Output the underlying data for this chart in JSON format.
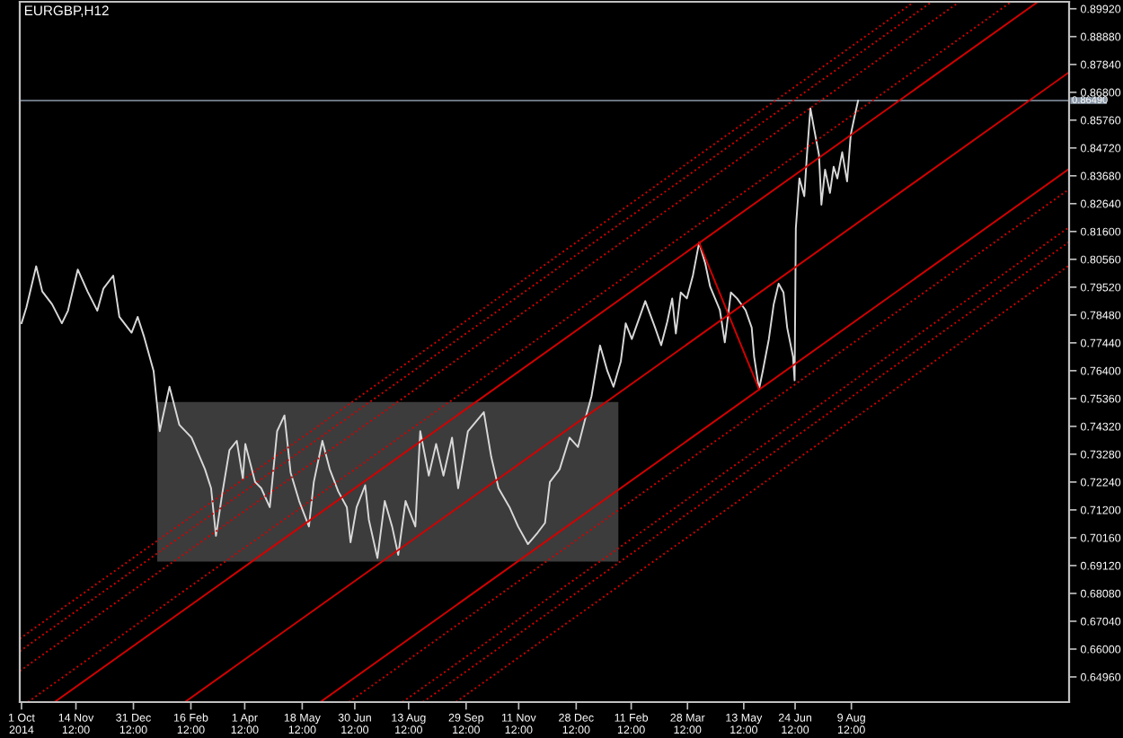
{
  "chart_data": {
    "type": "line",
    "title": "EURGBP,H12",
    "xlim": [
      "2014-09-29T14:00",
      "2017-02-03T12:00"
    ],
    "ylim": [
      0.6402,
      0.9018
    ],
    "xticks": [
      {
        "value": "2014-10-01T00:00",
        "label": "1 Oct 2014"
      },
      {
        "value": "2014-11-14T12:00",
        "label": "14 Nov 12:00"
      },
      {
        "value": "2014-12-31T12:00",
        "label": "31 Dec 12:00"
      },
      {
        "value": "2015-02-16T12:00",
        "label": "16 Feb 12:00"
      },
      {
        "value": "2015-04-01T12:00",
        "label": "1 Apr 12:00"
      },
      {
        "value": "2015-05-18T12:00",
        "label": "18 May 12:00"
      },
      {
        "value": "2015-06-30T12:00",
        "label": "30 Jun 12:00"
      },
      {
        "value": "2015-08-13T12:00",
        "label": "13 Aug 12:00"
      },
      {
        "value": "2015-09-29T12:00",
        "label": "29 Sep 12:00"
      },
      {
        "value": "2015-11-11T12:00",
        "label": "11 Nov 12:00"
      },
      {
        "value": "2015-12-28T12:00",
        "label": "28 Dec 12:00"
      },
      {
        "value": "2016-02-11T12:00",
        "label": "11 Feb 12:00"
      },
      {
        "value": "2016-03-28T12:00",
        "label": "28 Mar 12:00"
      },
      {
        "value": "2016-05-13T12:00",
        "label": "13 May 12:00"
      },
      {
        "value": "2016-06-24T12:00",
        "label": "24 Jun 12:00"
      },
      {
        "value": "2016-08-09T12:00",
        "label": "9 Aug 12:00"
      }
    ],
    "yticks": [
      {
        "value": 0.6496,
        "label": "0.64960"
      },
      {
        "value": 0.66,
        "label": "0.66000"
      },
      {
        "value": 0.6704,
        "label": "0.67040"
      },
      {
        "value": 0.6808,
        "label": "0.68080"
      },
      {
        "value": 0.6912,
        "label": "0.69120"
      },
      {
        "value": 0.7016,
        "label": "0.70160"
      },
      {
        "value": 0.712,
        "label": "0.71200"
      },
      {
        "value": 0.7224,
        "label": "0.72240"
      },
      {
        "value": 0.7328,
        "label": "0.73280"
      },
      {
        "value": 0.7432,
        "label": "0.74320"
      },
      {
        "value": 0.7536,
        "label": "0.75360"
      },
      {
        "value": 0.764,
        "label": "0.76400"
      },
      {
        "value": 0.7744,
        "label": "0.77440"
      },
      {
        "value": 0.7848,
        "label": "0.78480"
      },
      {
        "value": 0.7952,
        "label": "0.79520"
      },
      {
        "value": 0.8056,
        "label": "0.80560"
      },
      {
        "value": 0.816,
        "label": "0.81600"
      },
      {
        "value": 0.8264,
        "label": "0.82640"
      },
      {
        "value": 0.8368,
        "label": "0.83680"
      },
      {
        "value": 0.8472,
        "label": "0.84720"
      },
      {
        "value": 0.8576,
        "label": "0.85760"
      },
      {
        "value": 0.868,
        "label": "0.86800"
      },
      {
        "value": 0.8784,
        "label": "0.87840"
      },
      {
        "value": 0.8888,
        "label": "0.88880"
      },
      {
        "value": 0.8992,
        "label": "0.89920"
      }
    ],
    "series": [
      {
        "color": "#3c3c3c",
        "x": [
          "2015-01-20",
          "2016-02-01"
        ],
        "values": [
          null,
          null
        ],
        "lower": [
          0.6927,
          0.6927
        ],
        "upper": [
          0.7523,
          0.7523
        ]
      },
      {
        "color": "#d8d8d8",
        "line_style": "solid",
        "x": [
          "2014-10-01",
          "2014-10-05",
          "2014-10-13",
          "2014-10-18",
          "2014-10-26",
          "2014-11-03",
          "2014-11-08",
          "2014-11-16",
          "2014-11-24",
          "2014-12-02",
          "2014-12-07",
          "2014-12-15",
          "2014-12-20",
          "2014-12-30",
          "2015-01-04",
          "2015-01-09",
          "2015-01-17",
          "2015-01-22",
          "2015-01-30",
          "2015-02-07",
          "2015-02-17",
          "2015-02-28",
          "2015-03-05",
          "2015-03-09",
          "2015-03-14",
          "2015-03-20",
          "2015-03-26",
          "2015-03-31",
          "2015-04-02",
          "2015-04-10",
          "2015-04-15",
          "2015-04-22",
          "2015-04-28",
          "2015-05-04",
          "2015-05-09",
          "2015-05-16",
          "2015-05-24",
          "2015-05-28",
          "2015-06-04",
          "2015-06-10",
          "2015-06-17",
          "2015-06-24",
          "2015-06-27",
          "2015-07-02",
          "2015-07-09",
          "2015-07-12",
          "2015-07-19",
          "2015-07-25",
          "2015-07-31",
          "2015-08-05",
          "2015-08-11",
          "2015-08-19",
          "2015-08-23",
          "2015-08-30",
          "2015-09-05",
          "2015-09-11",
          "2015-09-18",
          "2015-09-23",
          "2015-10-01",
          "2015-10-14",
          "2015-10-20",
          "2015-10-26",
          "2015-11-04",
          "2015-11-11",
          "2015-11-19",
          "2015-11-27",
          "2015-12-03",
          "2015-12-07",
          "2015-12-15",
          "2015-12-23",
          "2015-12-30",
          "2016-01-05",
          "2016-01-10",
          "2016-01-17",
          "2016-01-23",
          "2016-01-28",
          "2016-02-03",
          "2016-02-07",
          "2016-02-12",
          "2016-02-23",
          "2016-03-02",
          "2016-03-07",
          "2016-03-12",
          "2016-03-16",
          "2016-03-19",
          "2016-03-23",
          "2016-03-28",
          "2016-04-02",
          "2016-04-07",
          "2016-04-12",
          "2016-04-16",
          "2016-04-24",
          "2016-04-28",
          "2016-05-03",
          "2016-05-08",
          "2016-05-15",
          "2016-05-20",
          "2016-05-22",
          "2016-05-26",
          "2016-05-29",
          "2016-06-03",
          "2016-06-07",
          "2016-06-11",
          "2016-06-15",
          "2016-06-18",
          "2016-06-22T19:00",
          "2016-06-24T02:00",
          "2016-06-25T02:00",
          "2016-06-28",
          "2016-07-02",
          "2016-07-04",
          "2016-07-07",
          "2016-07-10",
          "2016-07-14",
          "2016-07-16",
          "2016-07-19",
          "2016-07-23",
          "2016-07-26",
          "2016-07-29",
          "2016-08-02",
          "2016-08-06",
          "2016-08-09",
          "2016-08-12",
          "2016-08-15"
        ],
        "values": [
          0.7817,
          0.7876,
          0.803,
          0.7936,
          0.7888,
          0.7817,
          0.7864,
          0.8018,
          0.7936,
          0.7864,
          0.7947,
          0.7995,
          0.7841,
          0.7782,
          0.7841,
          0.777,
          0.7639,
          0.7414,
          0.758,
          0.7438,
          0.739,
          0.7272,
          0.7201,
          0.7023,
          0.7177,
          0.7343,
          0.7378,
          0.7236,
          0.7366,
          0.7224,
          0.7201,
          0.713,
          0.7414,
          0.7473,
          0.726,
          0.7153,
          0.7058,
          0.7224,
          0.7378,
          0.7272,
          0.7189,
          0.713,
          0.6999,
          0.713,
          0.7212,
          0.7083,
          0.694,
          0.7153,
          0.7058,
          0.6952,
          0.7153,
          0.7058,
          0.7414,
          0.7248,
          0.7366,
          0.7248,
          0.739,
          0.7201,
          0.7414,
          0.7485,
          0.7319,
          0.7201,
          0.713,
          0.7058,
          0.6992,
          0.7035,
          0.7071,
          0.7224,
          0.7272,
          0.739,
          0.7355,
          0.7462,
          0.7544,
          0.7734,
          0.7639,
          0.758,
          0.7675,
          0.7817,
          0.7758,
          0.79,
          0.7801,
          0.7735,
          0.7823,
          0.791,
          0.7779,
          0.7932,
          0.791,
          0.7997,
          0.8118,
          0.8041,
          0.7954,
          0.7866,
          0.7746,
          0.7932,
          0.791,
          0.7866,
          0.7801,
          0.7692,
          0.7571,
          0.7637,
          0.7757,
          0.7888,
          0.7965,
          0.7932,
          0.7801,
          0.7692,
          0.7604,
          0.8172,
          0.8358,
          0.8292,
          0.8435,
          0.862,
          0.8544,
          0.8446,
          0.826,
          0.8391,
          0.8304,
          0.8402,
          0.8358,
          0.8456,
          0.8347,
          0.8522,
          0.8587,
          0.8649
        ]
      },
      {
        "color": "#d40000",
        "line_style": "solid",
        "x": [
          "2016-04-07",
          "2016-05-26"
        ],
        "values": [
          0.8118,
          0.7571
        ]
      },
      {
        "color": "#d40000",
        "line_style": "solid",
        "x": [
          "2014-10-28",
          "2017-01-09"
        ],
        "values": [
          0.6402,
          0.9018
        ]
      },
      {
        "color": "#d40000",
        "line_style": "solid",
        "x": [
          "2015-02-11T14:00",
          "2017-02-03T12:00"
        ],
        "values": [
          0.6402,
          0.8755
        ]
      },
      {
        "color": "#d40000",
        "line_style": "solid",
        "x": [
          "2015-06-02T07:00",
          "2017-02-03T12:00"
        ],
        "values": [
          0.6402,
          0.8394
        ]
      },
      {
        "color": "#d40000",
        "line_style": "dotted",
        "x": [
          "2014-09-29T14:00",
          "2016-09-29T19:00"
        ],
        "values": [
          0.6639,
          0.9018
        ]
      },
      {
        "color": "#d40000",
        "line_style": "dotted",
        "x": [
          "2014-09-29T14:00",
          "2016-10-14T07:00"
        ],
        "values": [
          0.6592,
          0.9018
        ]
      },
      {
        "color": "#d40000",
        "line_style": "dotted",
        "x": [
          "2014-09-29T14:00",
          "2016-11-05T22:00"
        ],
        "values": [
          0.6518,
          0.9018
        ]
      },
      {
        "color": "#d40000",
        "line_style": "dotted",
        "x": [
          "2014-10-06T05:00",
          "2016-12-18T05:00"
        ],
        "values": [
          0.6402,
          0.9018
        ]
      },
      {
        "color": "#d40000",
        "line_style": "dotted",
        "x": [
          "2015-06-25T17:00",
          "2017-02-03T12:00"
        ],
        "values": [
          0.6402,
          0.8318
        ]
      },
      {
        "color": "#d40000",
        "line_style": "dotted",
        "x": [
          "2015-08-08T12:00",
          "2017-02-03T12:00"
        ],
        "values": [
          0.6402,
          0.8176
        ]
      },
      {
        "color": "#d40000",
        "line_style": "dotted",
        "x": [
          "2015-08-25T07:00",
          "2017-02-03T12:00"
        ],
        "values": [
          0.6402,
          0.8121
        ]
      },
      {
        "color": "#d40000",
        "line_style": "dotted",
        "x": [
          "2015-09-21T05:00",
          "2017-02-03T12:00"
        ],
        "values": [
          0.6402,
          0.8033
        ]
      }
    ],
    "ref_lines": [
      {
        "axis": "y",
        "value": 0.8649,
        "label": "0.86490",
        "color": "#8c9aaa"
      }
    ]
  }
}
